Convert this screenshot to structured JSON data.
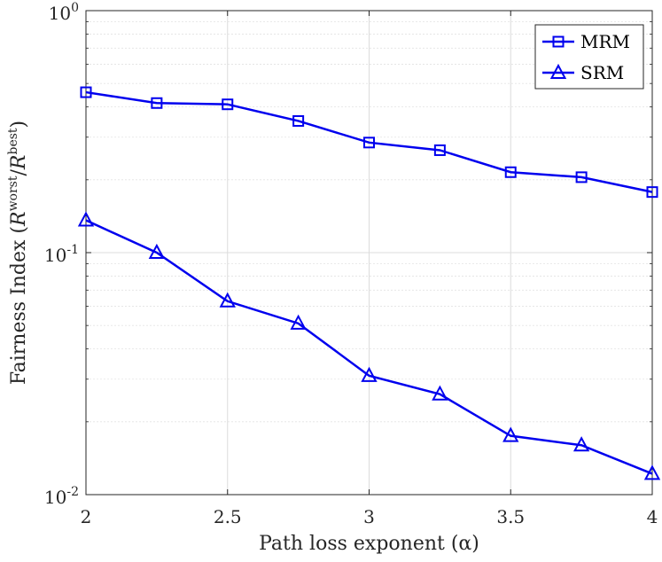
{
  "chart_data": {
    "type": "line",
    "title": "",
    "xlabel": "Path loss exponent (α)",
    "ylabel": "Fairness Index (R^worst/R^best)",
    "ylabel_parts": {
      "prefix": "Fairness Index (",
      "r1": "R",
      "sup1": "worst",
      "slash": "/",
      "r2": "R",
      "sup2": "best",
      "suffix": ")"
    },
    "yscale": "log",
    "xlim": [
      2,
      4
    ],
    "ylim": [
      0.01,
      1
    ],
    "grid": true,
    "x": [
      2,
      2.25,
      2.5,
      2.75,
      3,
      3.25,
      3.5,
      3.75,
      4
    ],
    "xticks": [
      2,
      2.5,
      3,
      3.5,
      4
    ],
    "xtick_labels": [
      "2",
      "2.5",
      "3",
      "3.5",
      "4"
    ],
    "yticks": [
      {
        "value": 1,
        "base": "10",
        "exp": "0"
      },
      {
        "value": 0.1,
        "base": "10",
        "exp": "-1"
      },
      {
        "value": 0.01,
        "base": "10",
        "exp": "-2"
      }
    ],
    "series": [
      {
        "name": "MRM",
        "marker": "square",
        "color": "#0000ee",
        "values": [
          0.46,
          0.415,
          0.41,
          0.35,
          0.285,
          0.265,
          0.215,
          0.205,
          0.178
        ]
      },
      {
        "name": "SRM",
        "marker": "triangle",
        "color": "#0000ee",
        "values": [
          0.136,
          0.1,
          0.063,
          0.051,
          0.031,
          0.026,
          0.0175,
          0.016,
          0.0122
        ]
      }
    ],
    "legend_position": "top-right"
  }
}
